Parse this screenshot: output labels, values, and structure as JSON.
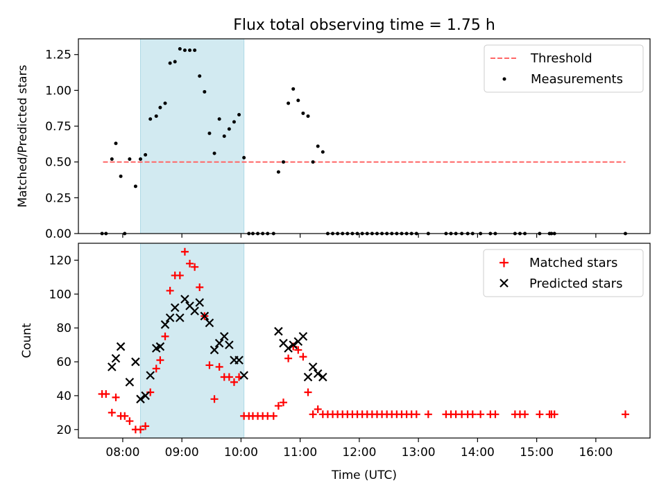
{
  "figure": {
    "title": "Flux total observing time = 1.75 h",
    "xlabel": "Time (UTC)",
    "x_ticks": [
      "08:00",
      "09:00",
      "10:00",
      "11:00",
      "12:00",
      "13:00",
      "14:00",
      "15:00",
      "16:00"
    ],
    "highlight_span": [
      "08:18",
      "10:03"
    ],
    "highlight_color": "#add8e6"
  },
  "chart_data": [
    {
      "type": "scatter",
      "ylabel": "Matched/Predicted stars",
      "xlim": [
        "07:15",
        "16:55"
      ],
      "ylim": [
        0,
        1.36
      ],
      "y_ticks": [
        "0.00",
        "0.25",
        "0.50",
        "0.75",
        "1.00",
        "1.25"
      ],
      "legend_position": "top-right",
      "threshold": {
        "name": "Threshold",
        "value": 0.5,
        "x_range": [
          "07:40",
          "16:30"
        ],
        "color": "#ff6666"
      },
      "series": [
        {
          "name": "Measurements",
          "color": "#000000",
          "points": [
            [
              "07:39",
              0.0
            ],
            [
              "07:43",
              0.0
            ],
            [
              "07:49",
              0.52
            ],
            [
              "07:53",
              0.63
            ],
            [
              "07:58",
              0.4
            ],
            [
              "08:02",
              0.0
            ],
            [
              "08:07",
              0.52
            ],
            [
              "08:13",
              0.33
            ],
            [
              "08:18",
              0.52
            ],
            [
              "08:23",
              0.55
            ],
            [
              "08:28",
              0.8
            ],
            [
              "08:34",
              0.82
            ],
            [
              "08:38",
              0.88
            ],
            [
              "08:43",
              0.91
            ],
            [
              "08:48",
              1.19
            ],
            [
              "08:53",
              1.2
            ],
            [
              "08:58",
              1.29
            ],
            [
              "09:03",
              1.28
            ],
            [
              "09:08",
              1.28
            ],
            [
              "09:13",
              1.28
            ],
            [
              "09:18",
              1.1
            ],
            [
              "09:23",
              0.99
            ],
            [
              "09:28",
              0.7
            ],
            [
              "09:33",
              0.56
            ],
            [
              "09:38",
              0.8
            ],
            [
              "09:43",
              0.68
            ],
            [
              "09:48",
              0.73
            ],
            [
              "09:53",
              0.78
            ],
            [
              "09:58",
              0.83
            ],
            [
              "10:03",
              0.53
            ],
            [
              "10:08",
              0.0
            ],
            [
              "10:12",
              0.0
            ],
            [
              "10:17",
              0.0
            ],
            [
              "10:22",
              0.0
            ],
            [
              "10:27",
              0.0
            ],
            [
              "10:33",
              0.0
            ],
            [
              "10:38",
              0.43
            ],
            [
              "10:43",
              0.5
            ],
            [
              "10:48",
              0.91
            ],
            [
              "10:53",
              1.01
            ],
            [
              "10:58",
              0.93
            ],
            [
              "11:03",
              0.84
            ],
            [
              "11:08",
              0.82
            ],
            [
              "11:13",
              0.5
            ],
            [
              "11:18",
              0.61
            ],
            [
              "11:23",
              0.57
            ],
            [
              "11:28",
              0.0
            ],
            [
              "11:33",
              0.0
            ],
            [
              "11:38",
              0.0
            ],
            [
              "11:43",
              0.0
            ],
            [
              "11:48",
              0.0
            ],
            [
              "11:53",
              0.0
            ],
            [
              "11:58",
              0.0
            ],
            [
              "12:03",
              0.0
            ],
            [
              "12:08",
              0.0
            ],
            [
              "12:13",
              0.0
            ],
            [
              "12:18",
              0.0
            ],
            [
              "12:23",
              0.0
            ],
            [
              "12:28",
              0.0
            ],
            [
              "12:33",
              0.0
            ],
            [
              "12:38",
              0.0
            ],
            [
              "12:43",
              0.0
            ],
            [
              "12:48",
              0.0
            ],
            [
              "12:53",
              0.0
            ],
            [
              "12:58",
              0.0
            ],
            [
              "13:10",
              0.0
            ],
            [
              "13:28",
              0.0
            ],
            [
              "13:33",
              0.0
            ],
            [
              "13:38",
              0.0
            ],
            [
              "13:44",
              0.0
            ],
            [
              "13:50",
              0.0
            ],
            [
              "13:55",
              0.0
            ],
            [
              "14:03",
              0.0
            ],
            [
              "14:13",
              0.0
            ],
            [
              "14:18",
              0.0
            ],
            [
              "14:38",
              0.0
            ],
            [
              "14:43",
              0.0
            ],
            [
              "14:48",
              0.0
            ],
            [
              "15:03",
              0.0
            ],
            [
              "15:13",
              0.0
            ],
            [
              "15:15",
              0.0
            ],
            [
              "15:18",
              0.0
            ],
            [
              "16:30",
              0.0
            ]
          ]
        }
      ]
    },
    {
      "type": "scatter",
      "ylabel": "Count",
      "xlim": [
        "07:15",
        "16:55"
      ],
      "ylim": [
        15,
        130
      ],
      "y_ticks": [
        "20",
        "40",
        "60",
        "80",
        "100",
        "120"
      ],
      "legend_position": "top-right",
      "series": [
        {
          "name": "Matched stars",
          "marker": "+",
          "color": "#ff0000",
          "points": [
            [
              "07:39",
              41
            ],
            [
              "07:43",
              41
            ],
            [
              "07:49",
              30
            ],
            [
              "07:53",
              39
            ],
            [
              "07:58",
              28
            ],
            [
              "08:02",
              28
            ],
            [
              "08:07",
              25
            ],
            [
              "08:13",
              20
            ],
            [
              "08:18",
              20
            ],
            [
              "08:23",
              22
            ],
            [
              "08:28",
              42
            ],
            [
              "08:34",
              56
            ],
            [
              "08:38",
              61
            ],
            [
              "08:43",
              75
            ],
            [
              "08:48",
              102
            ],
            [
              "08:53",
              111
            ],
            [
              "08:58",
              111
            ],
            [
              "09:03",
              125
            ],
            [
              "09:08",
              118
            ],
            [
              "09:13",
              116
            ],
            [
              "09:18",
              104
            ],
            [
              "09:23",
              87
            ],
            [
              "09:28",
              58
            ],
            [
              "09:33",
              38
            ],
            [
              "09:38",
              57
            ],
            [
              "09:43",
              51
            ],
            [
              "09:48",
              51
            ],
            [
              "09:53",
              48
            ],
            [
              "09:58",
              51
            ],
            [
              "10:03",
              28
            ],
            [
              "10:08",
              28
            ],
            [
              "10:12",
              28
            ],
            [
              "10:17",
              28
            ],
            [
              "10:22",
              28
            ],
            [
              "10:27",
              28
            ],
            [
              "10:33",
              28
            ],
            [
              "10:38",
              34
            ],
            [
              "10:43",
              36
            ],
            [
              "10:48",
              62
            ],
            [
              "10:53",
              69
            ],
            [
              "10:58",
              67
            ],
            [
              "11:03",
              63
            ],
            [
              "11:08",
              42
            ],
            [
              "11:13",
              29
            ],
            [
              "11:18",
              32
            ],
            [
              "11:23",
              29
            ],
            [
              "11:28",
              29
            ],
            [
              "11:33",
              29
            ],
            [
              "11:38",
              29
            ],
            [
              "11:43",
              29
            ],
            [
              "11:48",
              29
            ],
            [
              "11:53",
              29
            ],
            [
              "11:58",
              29
            ],
            [
              "12:03",
              29
            ],
            [
              "12:08",
              29
            ],
            [
              "12:13",
              29
            ],
            [
              "12:18",
              29
            ],
            [
              "12:23",
              29
            ],
            [
              "12:28",
              29
            ],
            [
              "12:33",
              29
            ],
            [
              "12:38",
              29
            ],
            [
              "12:43",
              29
            ],
            [
              "12:48",
              29
            ],
            [
              "12:53",
              29
            ],
            [
              "12:58",
              29
            ],
            [
              "13:10",
              29
            ],
            [
              "13:28",
              29
            ],
            [
              "13:33",
              29
            ],
            [
              "13:38",
              29
            ],
            [
              "13:44",
              29
            ],
            [
              "13:50",
              29
            ],
            [
              "13:55",
              29
            ],
            [
              "14:03",
              29
            ],
            [
              "14:13",
              29
            ],
            [
              "14:18",
              29
            ],
            [
              "14:38",
              29
            ],
            [
              "14:43",
              29
            ],
            [
              "14:48",
              29
            ],
            [
              "15:03",
              29
            ],
            [
              "15:13",
              29
            ],
            [
              "15:15",
              29
            ],
            [
              "15:18",
              29
            ],
            [
              "16:30",
              29
            ]
          ]
        },
        {
          "name": "Predicted stars",
          "marker": "x",
          "color": "#000000",
          "points": [
            [
              "07:49",
              57
            ],
            [
              "07:53",
              62
            ],
            [
              "07:58",
              69
            ],
            [
              "08:07",
              48
            ],
            [
              "08:13",
              60
            ],
            [
              "08:18",
              38
            ],
            [
              "08:23",
              40
            ],
            [
              "08:28",
              52
            ],
            [
              "08:34",
              68
            ],
            [
              "08:38",
              69
            ],
            [
              "08:43",
              82
            ],
            [
              "08:48",
              86
            ],
            [
              "08:53",
              92
            ],
            [
              "08:58",
              86
            ],
            [
              "09:03",
              97
            ],
            [
              "09:08",
              93
            ],
            [
              "09:13",
              90
            ],
            [
              "09:18",
              95
            ],
            [
              "09:23",
              87
            ],
            [
              "09:28",
              83
            ],
            [
              "09:33",
              67
            ],
            [
              "09:38",
              71
            ],
            [
              "09:43",
              75
            ],
            [
              "09:48",
              70
            ],
            [
              "09:53",
              61
            ],
            [
              "09:58",
              61
            ],
            [
              "10:03",
              52
            ],
            [
              "10:38",
              78
            ],
            [
              "10:43",
              71
            ],
            [
              "10:48",
              68
            ],
            [
              "10:53",
              70
            ],
            [
              "10:58",
              72
            ],
            [
              "11:03",
              75
            ],
            [
              "11:08",
              51
            ],
            [
              "11:13",
              57
            ],
            [
              "11:18",
              53
            ],
            [
              "11:23",
              51
            ]
          ]
        }
      ]
    }
  ]
}
